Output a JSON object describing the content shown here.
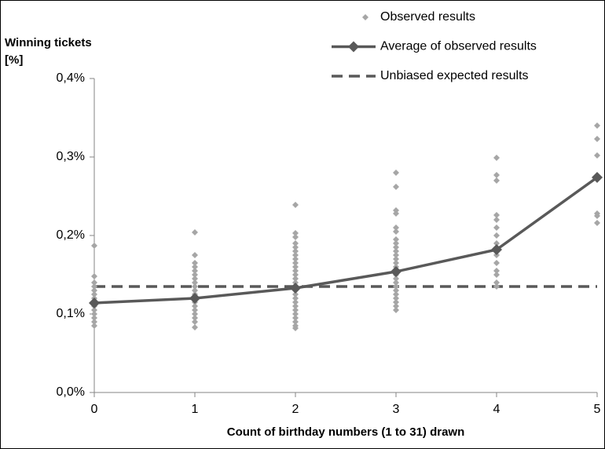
{
  "chart_data": {
    "type": "scatter",
    "ylabel_lines": [
      "Winning tickets",
      "[%]"
    ],
    "xlabel": "Count of birthday numbers (1 to 31) drawn",
    "xlim": [
      0,
      5
    ],
    "xticks": [
      0,
      1,
      2,
      3,
      4,
      5
    ],
    "ylim": [
      0,
      0.4
    ],
    "yticks": [
      {
        "value": 0,
        "label": "0,0%"
      },
      {
        "value": 0.1,
        "label": "0,1%"
      },
      {
        "value": 0.2,
        "label": "0,2%"
      },
      {
        "value": 0.3,
        "label": "0,3%"
      },
      {
        "value": 0.4,
        "label": "0,4%"
      }
    ],
    "series": [
      {
        "name": "Observed results",
        "color": "#a6a6a6",
        "style": "markers",
        "x": [
          0,
          0,
          0,
          0,
          0,
          0,
          0,
          0,
          0,
          0,
          0,
          0,
          0,
          0,
          1,
          1,
          1,
          1,
          1,
          1,
          1,
          1,
          1,
          1,
          1,
          1,
          1,
          1,
          1,
          1,
          1,
          1,
          1,
          2,
          2,
          2,
          2,
          2,
          2,
          2,
          2,
          2,
          2,
          2,
          2,
          2,
          2,
          2,
          2,
          2,
          2,
          2,
          2,
          2,
          2,
          2,
          2,
          2,
          2,
          3,
          3,
          3,
          3,
          3,
          3,
          3,
          3,
          3,
          3,
          3,
          3,
          3,
          3,
          3,
          3,
          3,
          3,
          3,
          3,
          3,
          3,
          3,
          3,
          3,
          4,
          4,
          4,
          4,
          4,
          4,
          4,
          4,
          4,
          4,
          4,
          4,
          4,
          4,
          4,
          5,
          5,
          5,
          5,
          5,
          5,
          5
        ],
        "values": [
          0.187,
          0.148,
          0.14,
          0.135,
          0.13,
          0.125,
          0.12,
          0.115,
          0.11,
          0.105,
          0.1,
          0.095,
          0.09,
          0.085,
          0.204,
          0.175,
          0.165,
          0.16,
          0.155,
          0.15,
          0.145,
          0.14,
          0.135,
          0.13,
          0.125,
          0.12,
          0.115,
          0.11,
          0.105,
          0.1,
          0.095,
          0.09,
          0.083,
          0.239,
          0.203,
          0.198,
          0.19,
          0.185,
          0.18,
          0.175,
          0.17,
          0.165,
          0.16,
          0.155,
          0.15,
          0.145,
          0.14,
          0.135,
          0.13,
          0.125,
          0.12,
          0.115,
          0.11,
          0.105,
          0.1,
          0.095,
          0.09,
          0.085,
          0.082,
          0.28,
          0.262,
          0.232,
          0.228,
          0.21,
          0.205,
          0.195,
          0.19,
          0.185,
          0.18,
          0.175,
          0.17,
          0.165,
          0.16,
          0.155,
          0.15,
          0.145,
          0.14,
          0.135,
          0.13,
          0.125,
          0.12,
          0.115,
          0.11,
          0.105,
          0.299,
          0.277,
          0.27,
          0.226,
          0.22,
          0.21,
          0.2,
          0.19,
          0.18,
          0.175,
          0.165,
          0.155,
          0.15,
          0.14,
          0.135,
          0.34,
          0.323,
          0.302,
          0.275,
          0.228,
          0.225,
          0.216
        ]
      },
      {
        "name": "Average of observed results",
        "color": "#595959",
        "style": "line-markers",
        "x": [
          0,
          1,
          2,
          3,
          4,
          5
        ],
        "values": [
          0.114,
          0.12,
          0.133,
          0.154,
          0.182,
          0.274
        ]
      },
      {
        "name": "Unbiased expected results",
        "color": "#595959",
        "style": "dashed",
        "x": [
          0,
          1,
          2,
          3,
          4,
          5
        ],
        "values": [
          0.135,
          0.135,
          0.135,
          0.135,
          0.135,
          0.135
        ]
      }
    ]
  }
}
